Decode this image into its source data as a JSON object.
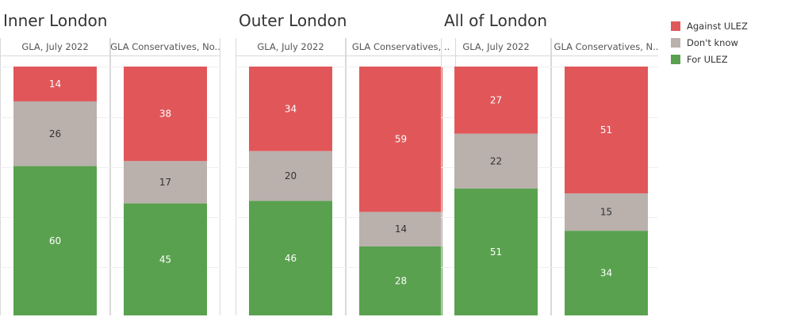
{
  "colors": {
    "Against ULEZ": "#e15759",
    "Don't know": "#bab0ac",
    "For ULEZ": "#59a14f"
  },
  "legend": [
    "Against ULEZ",
    "Don't know",
    "For ULEZ"
  ],
  "chart_data": {
    "type": "bar",
    "stacked": true,
    "normalized_percent": true,
    "legend_position": "top-right",
    "grid": true,
    "panels": [
      {
        "title": "Inner London",
        "columns": [
          {
            "header": "GLA, July 2022",
            "values": {
              "Against ULEZ": 14,
              "Don't know": 26,
              "For ULEZ": 60
            }
          },
          {
            "header": "GLA Conservatives, No..",
            "values": {
              "Against ULEZ": 38,
              "Don't know": 17,
              "For ULEZ": 45
            }
          }
        ]
      },
      {
        "title": "Outer London",
        "columns": [
          {
            "header": "GLA, July 2022",
            "values": {
              "Against ULEZ": 34,
              "Don't know": 20,
              "For ULEZ": 46
            }
          },
          {
            "header": "GLA Conservatives, ..",
            "values": {
              "Against ULEZ": 59,
              "Don't know": 14,
              "For ULEZ": 28
            }
          }
        ]
      },
      {
        "title": "All of London",
        "columns": [
          {
            "header": "GLA, July 2022",
            "values": {
              "Against ULEZ": 27,
              "Don't know": 22,
              "For ULEZ": 51
            }
          },
          {
            "header": "GLA Conservatives, N..",
            "values": {
              "Against ULEZ": 51,
              "Don't know": 15,
              "For ULEZ": 34
            }
          }
        ]
      }
    ]
  }
}
